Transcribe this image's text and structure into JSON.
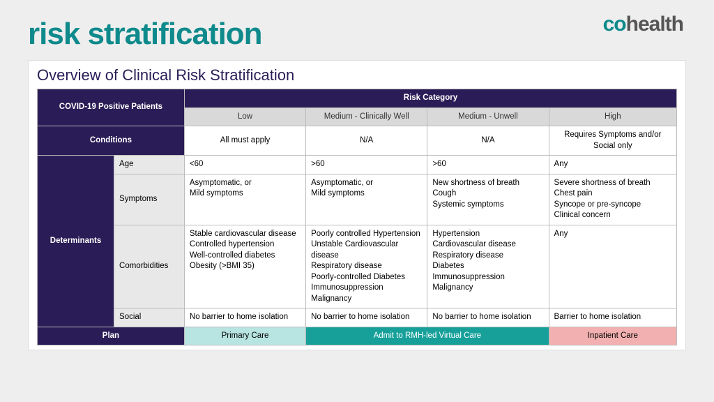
{
  "logo": {
    "part1": "co",
    "part2": "health"
  },
  "title": "risk stratification",
  "subtitle": "Overview of Clinical Risk Stratification",
  "table": {
    "corner": "COVID-19 Positive Patients",
    "riskHeader": "Risk Category",
    "riskCols": [
      "Low",
      "Medium - Clinically Well",
      "Medium - Unwell",
      "High"
    ],
    "conditionsLabel": "Conditions",
    "conditions": [
      "All must apply",
      "N/A",
      "N/A",
      "Requires Symptoms and/or Social only"
    ],
    "determinantsLabel": "Determinants",
    "rows": [
      {
        "label": "Age",
        "cells": [
          "<60",
          ">60",
          ">60",
          "Any"
        ]
      },
      {
        "label": "Symptoms",
        "cells": [
          "Asymptomatic, or\nMild symptoms",
          "Asymptomatic, or\nMild symptoms",
          "New shortness of breath\nCough\nSystemic symptoms",
          "Severe shortness of breath\nChest pain\nSyncope or pre-syncope\nClinical concern"
        ]
      },
      {
        "label": "Comorbidities",
        "cells": [
          "Stable cardiovascular disease\nControlled hypertension\nWell-controlled diabetes\nObesity (>BMI 35)",
          "Poorly controlled Hypertension\nUnstable Cardiovascular disease\nRespiratory disease\nPoorly-controlled Diabetes\nImmunosuppression\nMalignancy",
          "Hypertension\nCardiovascular disease\nRespiratory disease\nDiabetes\nImmunosuppression\nMalignancy",
          "Any"
        ]
      },
      {
        "label": "Social",
        "cells": [
          "No barrier to home isolation",
          "No barrier to home isolation",
          "No barrier to home isolation",
          "Barrier to home isolation"
        ]
      }
    ],
    "planLabel": "Plan",
    "plan": [
      "Primary Care",
      "Admit to RMH-led Virtual Care",
      "Inpatient Care"
    ]
  },
  "colors": {
    "page_bg": "#eeeeee",
    "card_bg": "#ffffff",
    "title": "#0f8a8c",
    "navy": "#2a1d57",
    "grey_header": "#d9d9d9",
    "grey_side": "#e8e8e8",
    "plan_light": "#b8e4e1",
    "plan_teal": "#17a09a",
    "plan_pink": "#f2b0b0",
    "border": "#bbbbbb"
  },
  "fontsizes": {
    "title": 44,
    "subtitle": 22,
    "body": 11.5,
    "logo": 30
  }
}
